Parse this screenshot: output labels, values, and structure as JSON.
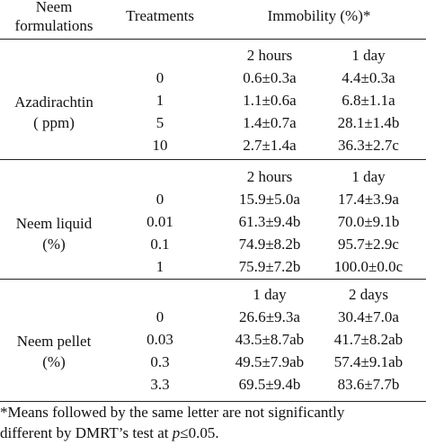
{
  "header": {
    "col1_line1": "Neem",
    "col1_line2": "formulations",
    "col2": "Treatments",
    "col3": "Immobility (%)*"
  },
  "groups": [
    {
      "label_line1": "Azadirachtin",
      "label_line2": "( ppm)",
      "time1": "2 hours",
      "time2": "1 day",
      "rows": [
        {
          "treatment": "0",
          "v1": "0.6±0.3a",
          "v2": "4.4±0.3a"
        },
        {
          "treatment": "1",
          "v1": "1.1±0.6a",
          "v2": "6.8±1.1a"
        },
        {
          "treatment": "5",
          "v1": "1.4±0.7a",
          "v2": "28.1±1.4b"
        },
        {
          "treatment": "10",
          "v1": "2.7±1.4a",
          "v2": "36.3±2.7c"
        }
      ]
    },
    {
      "label_line1": "Neem liquid",
      "label_line2": "(%)",
      "time1": "2 hours",
      "time2": "1 day",
      "rows": [
        {
          "treatment": "0",
          "v1": "15.9±5.0a",
          "v2": "17.4±3.9a"
        },
        {
          "treatment": "0.01",
          "v1": "61.3±9.4b",
          "v2": "70.0±9.1b"
        },
        {
          "treatment": "0.1",
          "v1": "74.9±8.2b",
          "v2": "95.7±2.9c"
        },
        {
          "treatment": "1",
          "v1": "75.9±7.2b",
          "v2": "100.0±0.0c"
        }
      ]
    },
    {
      "label_line1": "Neem pellet",
      "label_line2": "(%)",
      "time1": "1 day",
      "time2": "2 days",
      "rows": [
        {
          "treatment": "0",
          "v1": "26.6±9.3a",
          "v2": "30.4±7.0a"
        },
        {
          "treatment": "0.03",
          "v1": "43.5±8.7ab",
          "v2": "41.7±8.2ab"
        },
        {
          "treatment": "0.3",
          "v1": "49.5±7.9ab",
          "v2": "57.4±9.1ab"
        },
        {
          "treatment": "3.3",
          "v1": "69.5±9.4b",
          "v2": "83.6±7.7b"
        }
      ]
    }
  ],
  "footnote": {
    "line1": "*Means followed by the same letter are not significantly",
    "line2_prefix": "different by DMRT’s test at ",
    "line2_p": "p",
    "line2_suffix": "≤0.05."
  }
}
